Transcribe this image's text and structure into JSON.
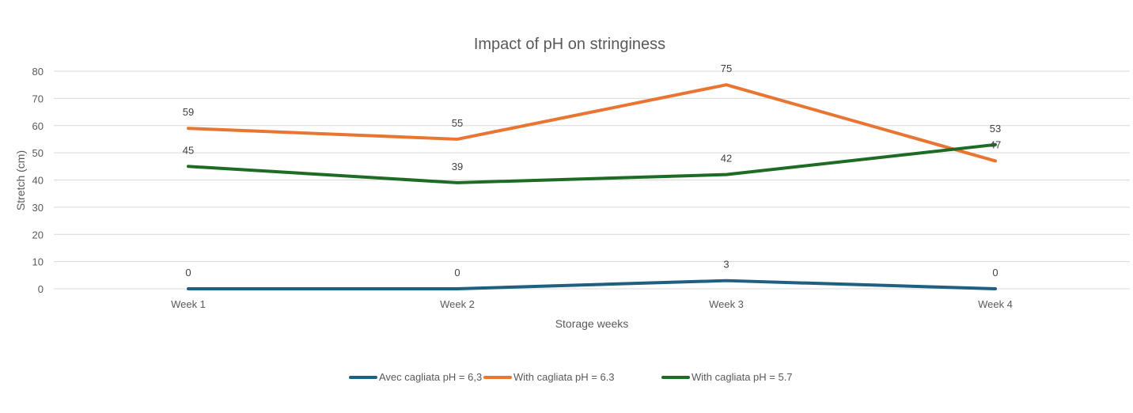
{
  "chart_data": {
    "type": "line",
    "title": "Impact of pH on stringiness",
    "xlabel": "Storage weeks",
    "ylabel": "Stretch (cm)",
    "categories": [
      "Week 1",
      "Week 2",
      "Week 3",
      "Week 4"
    ],
    "ylim": [
      0,
      80
    ],
    "yticks": [
      0,
      10,
      20,
      30,
      40,
      50,
      60,
      70,
      80
    ],
    "grid": true,
    "legend_position": "bottom",
    "series": [
      {
        "name": "Avec cagliata pH = 6,3",
        "color": "#1f5f7f",
        "values": [
          0,
          0,
          3,
          0
        ]
      },
      {
        "name": "With cagliata pH = 6.3",
        "color": "#e87532",
        "values": [
          59,
          55,
          75,
          47
        ]
      },
      {
        "name": "With cagliata pH = 5.7",
        "color": "#1e6b24",
        "values": [
          45,
          39,
          42,
          53
        ]
      }
    ]
  }
}
